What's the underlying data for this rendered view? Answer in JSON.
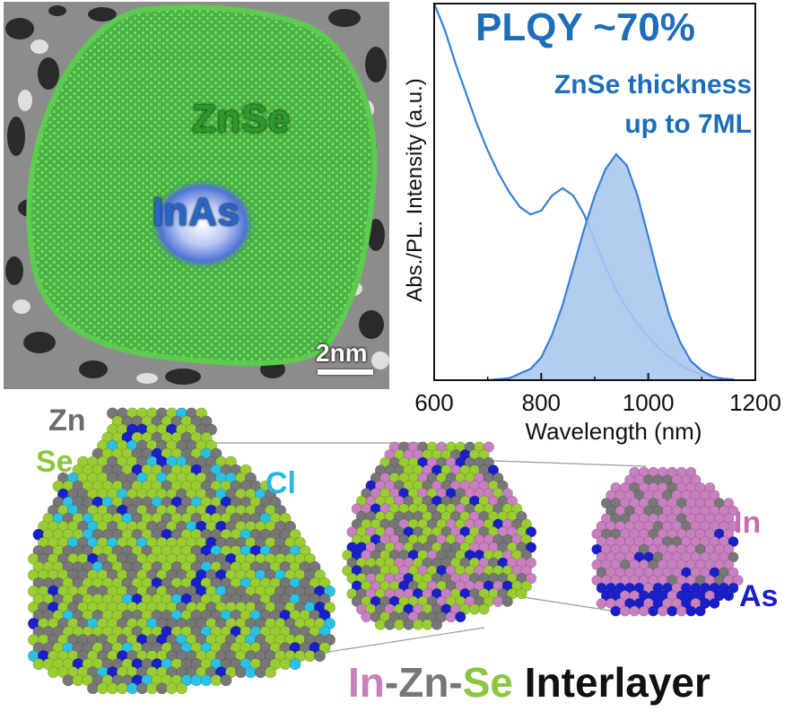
{
  "tem_image": {
    "shell_label": "ZnSe",
    "core_label": "InAs",
    "scale_bar_label": "2nm",
    "colors": {
      "shell": "#3fae3a",
      "core": "#4a6fd6",
      "background": "#9a9a9a"
    }
  },
  "chart_data": {
    "type": "line",
    "title": "PLQY ~70%",
    "annotation": [
      "ZnSe thickness",
      "up to 7ML"
    ],
    "xlabel": "Wavelength (nm)",
    "ylabel": "Abs./PL. Intensity (a.u.)",
    "xlim": [
      600,
      1200
    ],
    "ylim": [
      0,
      1
    ],
    "x_ticks": [
      600,
      800,
      1000,
      1200
    ],
    "grid": false,
    "legend": "none",
    "series": [
      {
        "role": "absorption",
        "style": "line",
        "color": "#3a7fd4",
        "x": [
          600,
          620,
          640,
          660,
          680,
          700,
          720,
          740,
          760,
          780,
          800,
          820,
          840,
          860,
          880,
          900,
          920,
          940,
          960,
          980,
          1000,
          1020,
          1040,
          1060,
          1080,
          1100,
          1120,
          1140,
          1160
        ],
        "y": [
          1.0,
          0.93,
          0.84,
          0.76,
          0.68,
          0.61,
          0.55,
          0.5,
          0.46,
          0.44,
          0.45,
          0.49,
          0.51,
          0.49,
          0.44,
          0.37,
          0.3,
          0.24,
          0.19,
          0.15,
          0.115,
          0.085,
          0.06,
          0.04,
          0.025,
          0.015,
          0.008,
          0.004,
          0.002
        ]
      },
      {
        "role": "photoluminescence",
        "style": "filled-area",
        "color": "#3a7fd4",
        "fill": "#aac8ee",
        "x": [
          700,
          740,
          780,
          800,
          820,
          840,
          860,
          880,
          900,
          920,
          940,
          960,
          980,
          1000,
          1020,
          1040,
          1060,
          1080,
          1100,
          1120,
          1140,
          1160
        ],
        "y": [
          0.0,
          0.005,
          0.03,
          0.06,
          0.12,
          0.2,
          0.3,
          0.4,
          0.49,
          0.56,
          0.6,
          0.57,
          0.49,
          0.38,
          0.27,
          0.17,
          0.1,
          0.05,
          0.025,
          0.01,
          0.003,
          0.0
        ]
      }
    ]
  },
  "models": {
    "element_labels": {
      "zn": "Zn",
      "se": "Se",
      "cl": "Cl",
      "in": "In",
      "as": "As"
    },
    "caption": {
      "in": "In",
      "dash1": "-",
      "zn": "Zn",
      "dash2": "-",
      "se": "Se",
      "word": " Interlayer"
    },
    "colors": {
      "zn": "#777777",
      "se": "#9acd32",
      "cl": "#2bc0e4",
      "in": "#c980c0",
      "as": "#1a1fcc"
    }
  }
}
